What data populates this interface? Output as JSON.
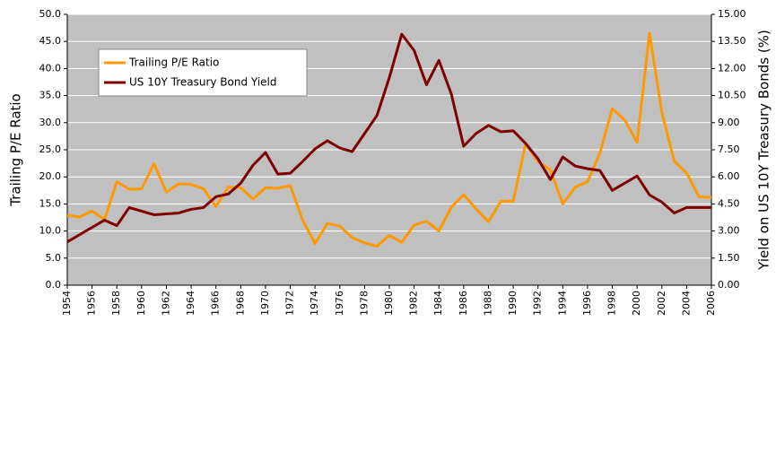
{
  "chart_data": {
    "type": "line",
    "y_label": "Trailing P/E Ratio",
    "y2_label": "Yield on US 10Y Treasury Bonds (%)",
    "x": [
      1954,
      1955,
      1956,
      1957,
      1958,
      1959,
      1960,
      1961,
      1962,
      1963,
      1964,
      1965,
      1966,
      1967,
      1968,
      1969,
      1970,
      1971,
      1972,
      1973,
      1974,
      1975,
      1976,
      1977,
      1978,
      1979,
      1980,
      1981,
      1982,
      1983,
      1984,
      1985,
      1986,
      1987,
      1988,
      1989,
      1990,
      1991,
      1992,
      1993,
      1994,
      1995,
      1996,
      1997,
      1998,
      1999,
      2000,
      2001,
      2002,
      2003,
      2004,
      2005,
      2006
    ],
    "xlim": [
      1954,
      2006
    ],
    "xticks": [
      1954,
      1956,
      1958,
      1960,
      1962,
      1964,
      1966,
      1968,
      1970,
      1972,
      1974,
      1976,
      1978,
      1980,
      1982,
      1984,
      1986,
      1988,
      1990,
      1992,
      1994,
      1996,
      1998,
      2000,
      2002,
      2004,
      2006
    ],
    "ylim": [
      0,
      50
    ],
    "yticks": [
      {
        "value": 0,
        "label": "0.0"
      },
      {
        "value": 5,
        "label": "5.0"
      },
      {
        "value": 10,
        "label": "10.0"
      },
      {
        "value": 15,
        "label": "15.0"
      },
      {
        "value": 20,
        "label": "20.0"
      },
      {
        "value": 25,
        "label": "25.0"
      },
      {
        "value": 30,
        "label": "30.0"
      },
      {
        "value": 35,
        "label": "35.0"
      },
      {
        "value": 40,
        "label": "40.0"
      },
      {
        "value": 45,
        "label": "45.0"
      },
      {
        "value": 50,
        "label": "50.0"
      }
    ],
    "y2lim": [
      0,
      15
    ],
    "y2ticks": [
      {
        "value": 0,
        "label": "0.00"
      },
      {
        "value": 1.5,
        "label": "1.50"
      },
      {
        "value": 3,
        "label": "3.00"
      },
      {
        "value": 4.5,
        "label": "4.50"
      },
      {
        "value": 6,
        "label": "6.00"
      },
      {
        "value": 7.5,
        "label": "7.50"
      },
      {
        "value": 9,
        "label": "9.00"
      },
      {
        "value": 10.5,
        "label": "10.50"
      },
      {
        "value": 12,
        "label": "12.00"
      },
      {
        "value": 13.5,
        "label": "13.50"
      },
      {
        "value": 15,
        "label": "15.00"
      }
    ],
    "grid": true,
    "legend": "top-left",
    "series": [
      {
        "name": "Trailing P/E Ratio",
        "color": "#ff9900",
        "values": [
          12.9,
          12.6,
          13.7,
          12.1,
          19.1,
          17.7,
          17.8,
          22.4,
          17.2,
          18.7,
          18.6,
          17.8,
          14.5,
          18.1,
          18.0,
          15.9,
          18.0,
          17.9,
          18.4,
          12.0,
          7.7,
          11.4,
          10.9,
          8.8,
          7.8,
          7.2,
          9.2,
          7.9,
          11.1,
          11.8,
          10.0,
          14.4,
          16.7,
          14.1,
          11.7,
          15.5,
          15.5,
          26.1,
          22.8,
          21.3,
          15.0,
          18.1,
          19.1,
          24.4,
          32.6,
          30.5,
          26.4,
          46.5,
          31.9,
          22.9,
          20.7,
          16.3,
          16.2
        ]
      },
      {
        "name": "US 10Y Treasury Bond Yield",
        "color": "#7f0000",
        "axis": "y2",
        "values": [
          2.4,
          2.8,
          3.2,
          3.6,
          3.3,
          4.3,
          4.1,
          3.9,
          3.95,
          4.0,
          4.2,
          4.3,
          4.9,
          5.05,
          5.65,
          6.65,
          7.35,
          6.15,
          6.2,
          6.85,
          7.55,
          8.0,
          7.6,
          7.4,
          8.4,
          9.4,
          11.5,
          13.9,
          13.0,
          11.1,
          12.45,
          10.6,
          7.7,
          8.4,
          8.85,
          8.5,
          8.55,
          7.85,
          7.0,
          5.85,
          7.1,
          6.6,
          6.45,
          6.35,
          5.25,
          5.65,
          6.05,
          5.0,
          4.6,
          4.0,
          4.3,
          4.3,
          4.3
        ]
      }
    ]
  }
}
